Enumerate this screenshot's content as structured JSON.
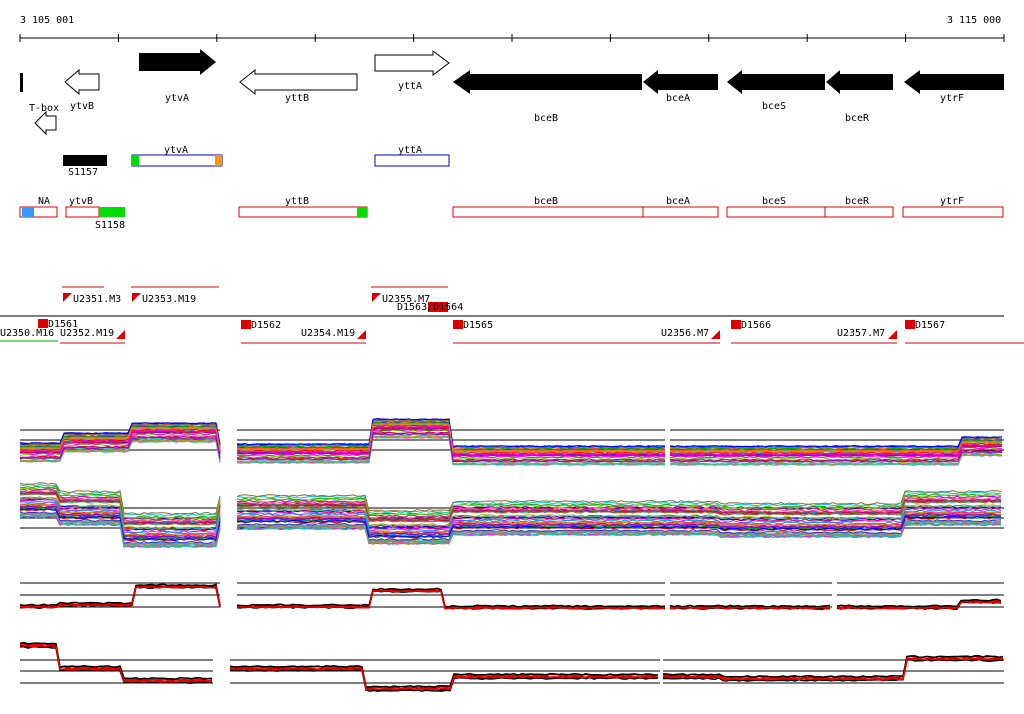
{
  "ruler": {
    "start_label": "3 105 001",
    "end_label": "3 115 000"
  },
  "genes": [
    {
      "label": "ytvB",
      "style": "outline"
    },
    {
      "label": "T-box",
      "style": "outline"
    },
    {
      "label": "ytvA",
      "style": "filled"
    },
    {
      "label": "yttB",
      "style": "outline"
    },
    {
      "label": "yttA",
      "style": "outline"
    },
    {
      "label": "bceB",
      "style": "filled"
    },
    {
      "label": "bceA",
      "style": "filled"
    },
    {
      "label": "bceS",
      "style": "filled"
    },
    {
      "label": "bceR",
      "style": "filled"
    },
    {
      "label": "ytrF",
      "style": "filled"
    }
  ],
  "features_row2": {
    "s1157": "S1157",
    "ytvA": "ytvA",
    "yttA": "yttA"
  },
  "features_row3": {
    "na": "NA",
    "ytvB": "ytvB",
    "s1158": "S1158",
    "yttB": "yttB",
    "bceB": "bceB",
    "bceA": "bceA",
    "bceS": "bceS",
    "bceR": "bceR",
    "ytrF": "ytrF"
  },
  "transcripts_upper": [
    "U2351.M3",
    "U2353.M19",
    "U2355.M7",
    "D1563/D1564"
  ],
  "transcripts_lower": [
    "U2350.M16",
    "D1561",
    "U2352.M19",
    "D1562",
    "U2354.M19",
    "D1565",
    "U2356.M7",
    "D1566",
    "U2357.M7",
    "D1567"
  ],
  "colors": {
    "gene_fill": "#000000",
    "feature_blue": "#0000cc",
    "feature_red": "#dd0000",
    "marker_green": "#00dd00",
    "marker_orange": "#ff9900",
    "marker_blue": "#3399ff",
    "trace_black": "#000000",
    "trace_red": "#ee0000"
  },
  "expression_panels": [
    {
      "name": "panel-1",
      "type": "multi-condition"
    },
    {
      "name": "panel-2",
      "type": "multi-condition"
    },
    {
      "name": "panel-3",
      "type": "two-condition"
    },
    {
      "name": "panel-4",
      "type": "two-condition"
    }
  ]
}
